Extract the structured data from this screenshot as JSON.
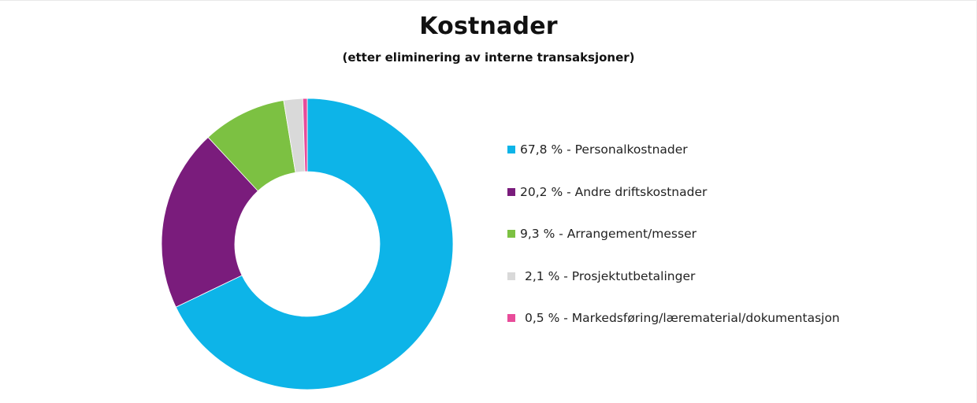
{
  "title": "Kostnader",
  "subtitle": "(etter eliminering av interne transaksjoner)",
  "legend": [
    {
      "label": "67,8 % - Personalkostnader",
      "color": "#0DB4E8"
    },
    {
      "label": "20,2 % - Andre driftskostnader",
      "color": "#7A1C7C"
    },
    {
      "label": "9,3 % - Arrangement/messer",
      "color": "#7CC142"
    },
    {
      "label": "2,1 % - Prosjektutbetalinger",
      "color": "#D9D9D9"
    },
    {
      "label": "0,5 % - Markedsføring/lærematerial/dokumentasjon",
      "color": "#E84C9A"
    }
  ],
  "chart_data": {
    "type": "pie",
    "variant": "donut",
    "title": "Kostnader",
    "subtitle": "(etter eliminering av interne transaksjoner)",
    "categories": [
      "Personalkostnader",
      "Andre driftskostnader",
      "Arrangement/messer",
      "Prosjektutbetalinger",
      "Markedsføring/lærematerial/dokumentasjon"
    ],
    "values": [
      67.8,
      20.2,
      9.3,
      2.1,
      0.5
    ],
    "unit": "%",
    "colors": [
      "#0DB4E8",
      "#7A1C7C",
      "#7CC142",
      "#D9D9D9",
      "#E84C9A"
    ],
    "start_angle": "12 o'clock",
    "direction": "clockwise",
    "legend_position": "right"
  }
}
